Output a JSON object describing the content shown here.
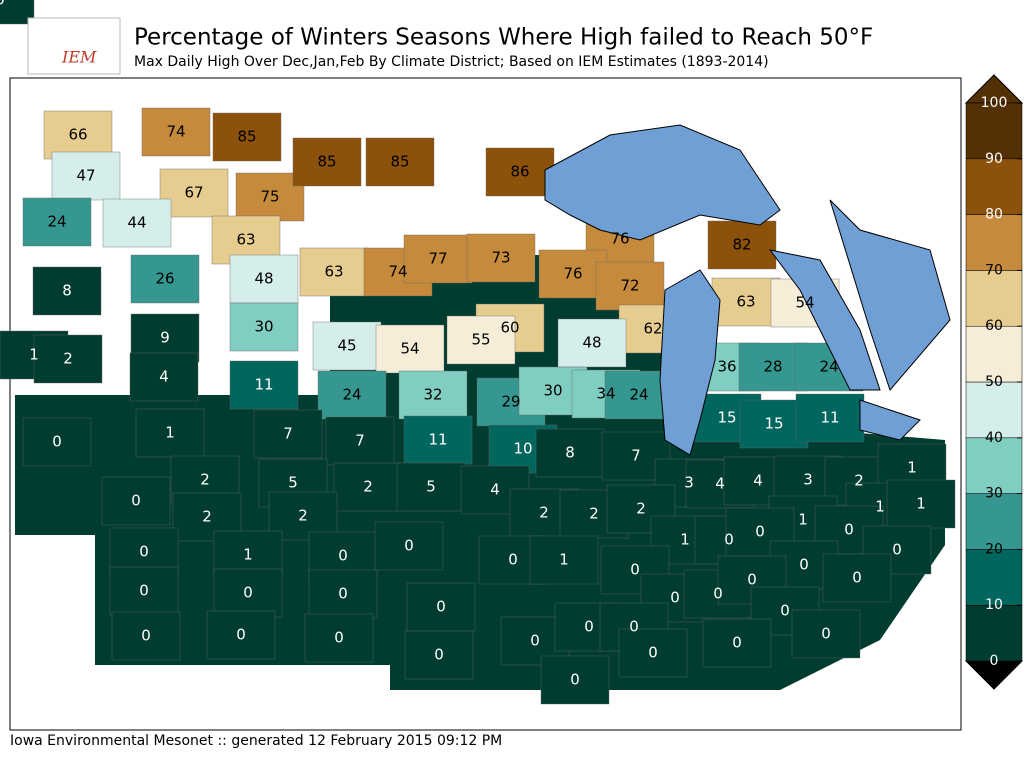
{
  "header": {
    "logo": "IEM",
    "title": "Percentage of Winters Seasons Where High failed to Reach 50°F",
    "subtitle": "Max Daily High Over Dec,Jan,Feb By Climate District; Based on IEM Estimates (1893-2014)"
  },
  "map": {
    "districts": [
      66,
      74,
      85,
      47,
      67,
      75,
      85,
      85,
      86,
      24,
      44,
      63,
      76,
      82,
      8,
      26,
      48,
      63,
      74,
      77,
      73,
      76,
      72,
      63,
      54,
      1,
      2,
      9,
      30,
      60,
      62,
      45,
      54,
      55,
      48,
      4,
      11,
      36,
      28,
      24,
      24,
      32,
      29,
      30,
      34,
      24,
      0,
      1,
      7,
      7,
      11,
      10,
      8,
      7,
      15,
      15,
      11,
      2,
      5,
      2,
      5,
      4,
      3,
      4,
      4,
      3,
      2,
      1,
      0,
      2,
      2,
      2,
      2,
      2,
      1,
      1,
      1,
      0,
      1,
      0,
      0,
      0,
      0,
      1,
      0,
      0,
      0,
      1,
      0,
      0,
      0,
      0,
      0,
      0,
      0,
      0,
      0,
      0,
      0,
      0,
      0,
      0,
      0,
      0,
      0,
      0,
      0,
      0,
      0,
      0,
      0
    ]
  },
  "colorbar": {
    "ticks": [
      0,
      10,
      20,
      30,
      40,
      50,
      60,
      70,
      80,
      90,
      100
    ],
    "colors": [
      "#003c30",
      "#01665e",
      "#35978f",
      "#80cdc1",
      "#d6eeeb",
      "#f6edd9",
      "#e6cd8f",
      "#c58a3c",
      "#8c510a",
      "#543005"
    ]
  },
  "footer": "Iowa Environmental Mesonet :: generated 12 February 2015 09:12 PM"
}
